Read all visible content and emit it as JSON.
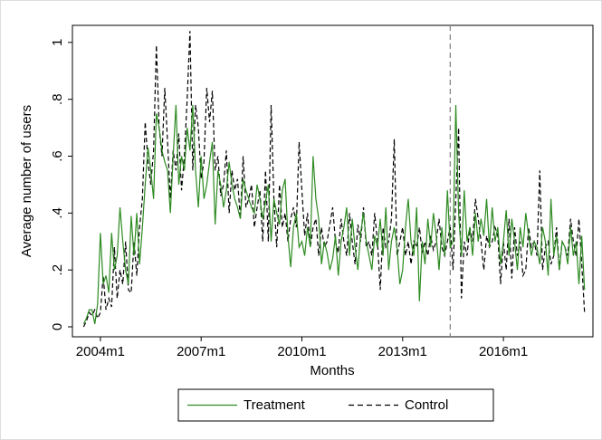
{
  "chart_data": {
    "type": "line",
    "y_label": "Average number of users",
    "x_label": "Months",
    "x": [
      522,
      523,
      524,
      525,
      526,
      527,
      528,
      529,
      530,
      531,
      532,
      533,
      534,
      535,
      536,
      537,
      538,
      539,
      540,
      541,
      542,
      543,
      544,
      545,
      546,
      547,
      548,
      549,
      550,
      551,
      552,
      553,
      554,
      555,
      556,
      557,
      558,
      559,
      560,
      561,
      562,
      563,
      564,
      565,
      566,
      567,
      568,
      569,
      570,
      571,
      572,
      573,
      574,
      575,
      576,
      577,
      578,
      579,
      580,
      581,
      582,
      583,
      584,
      585,
      586,
      587,
      588,
      589,
      590,
      591,
      592,
      593,
      594,
      595,
      596,
      597,
      598,
      599,
      600,
      601,
      602,
      603,
      604,
      605,
      606,
      607,
      608,
      609,
      610,
      611,
      612,
      613,
      614,
      615,
      616,
      617,
      618,
      619,
      620,
      621,
      622,
      623,
      624,
      625,
      626,
      627,
      628,
      629,
      630,
      631,
      632,
      633,
      634,
      635,
      636,
      637,
      638,
      639,
      640,
      641,
      642,
      643,
      644,
      645,
      646,
      647,
      648,
      649,
      650,
      651,
      652,
      653,
      654,
      655,
      656,
      657,
      658,
      659,
      660,
      661,
      662,
      663,
      664,
      665,
      666,
      667,
      668,
      669,
      670,
      671,
      672,
      673,
      674,
      675,
      676,
      677,
      678,
      679,
      680,
      681,
      682,
      683,
      684,
      685,
      686,
      687,
      688,
      689,
      690,
      691,
      692,
      693,
      694,
      695,
      696,
      697,
      698,
      699,
      700,
      701
    ],
    "series": [
      {
        "name": "Treatment",
        "color": "#2e8b22",
        "dash": false,
        "values": [
          0.01,
          0.03,
          0.06,
          0.06,
          0.01,
          0.08,
          0.33,
          0.15,
          0.18,
          0.12,
          0.33,
          0.2,
          0.25,
          0.42,
          0.3,
          0.2,
          0.15,
          0.39,
          0.25,
          0.4,
          0.22,
          0.35,
          0.5,
          0.63,
          0.55,
          0.45,
          0.75,
          0.7,
          0.62,
          0.58,
          0.55,
          0.4,
          0.6,
          0.78,
          0.5,
          0.6,
          0.55,
          0.7,
          0.62,
          0.78,
          0.55,
          0.42,
          0.6,
          0.45,
          0.5,
          0.58,
          0.65,
          0.36,
          0.55,
          0.5,
          0.42,
          0.48,
          0.58,
          0.5,
          0.45,
          0.42,
          0.38,
          0.52,
          0.48,
          0.45,
          0.42,
          0.4,
          0.5,
          0.45,
          0.38,
          0.44,
          0.5,
          0.3,
          0.45,
          0.4,
          0.36,
          0.48,
          0.52,
          0.32,
          0.21,
          0.35,
          0.4,
          0.28,
          0.3,
          0.25,
          0.35,
          0.28,
          0.6,
          0.45,
          0.38,
          0.22,
          0.3,
          0.26,
          0.2,
          0.24,
          0.32,
          0.18,
          0.3,
          0.35,
          0.42,
          0.25,
          0.38,
          0.28,
          0.2,
          0.33,
          0.4,
          0.3,
          0.25,
          0.2,
          0.32,
          0.28,
          0.38,
          0.25,
          0.42,
          0.2,
          0.3,
          0.35,
          0.28,
          0.15,
          0.2,
          0.35,
          0.45,
          0.3,
          0.25,
          0.42,
          0.09,
          0.3,
          0.22,
          0.38,
          0.28,
          0.4,
          0.32,
          0.2,
          0.35,
          0.25,
          0.48,
          0.28,
          0.3,
          0.78,
          0.4,
          0.25,
          0.48,
          0.3,
          0.35,
          0.25,
          0.4,
          0.3,
          0.38,
          0.32,
          0.45,
          0.28,
          0.42,
          0.3,
          0.35,
          0.22,
          0.3,
          0.41,
          0.25,
          0.38,
          0.3,
          0.2,
          0.35,
          0.28,
          0.4,
          0.32,
          0.25,
          0.3,
          0.28,
          0.22,
          0.35,
          0.3,
          0.18,
          0.45,
          0.25,
          0.32,
          0.2,
          0.3,
          0.28,
          0.22,
          0.35,
          0.25,
          0.3,
          0.15,
          0.32,
          0.13
        ]
      },
      {
        "name": "Control",
        "color": "#000000",
        "dash": true,
        "values": [
          0.0,
          0.02,
          0.05,
          0.04,
          0.06,
          0.03,
          0.05,
          0.18,
          0.06,
          0.1,
          0.07,
          0.28,
          0.1,
          0.2,
          0.15,
          0.3,
          0.13,
          0.12,
          0.3,
          0.18,
          0.35,
          0.45,
          0.72,
          0.58,
          0.5,
          0.62,
          0.99,
          0.7,
          0.6,
          0.84,
          0.65,
          0.45,
          0.62,
          0.55,
          0.68,
          0.48,
          0.6,
          0.8,
          1.04,
          0.55,
          0.78,
          0.7,
          0.52,
          0.58,
          0.84,
          0.72,
          0.83,
          0.55,
          0.6,
          0.46,
          0.5,
          0.62,
          0.4,
          0.55,
          0.48,
          0.52,
          0.38,
          0.6,
          0.42,
          0.45,
          0.5,
          0.35,
          0.42,
          0.48,
          0.3,
          0.55,
          0.3,
          0.78,
          0.45,
          0.28,
          0.5,
          0.35,
          0.4,
          0.3,
          0.38,
          0.42,
          0.35,
          0.65,
          0.48,
          0.32,
          0.4,
          0.28,
          0.35,
          0.38,
          0.25,
          0.35,
          0.28,
          0.3,
          0.36,
          0.42,
          0.3,
          0.26,
          0.38,
          0.3,
          0.25,
          0.4,
          0.3,
          0.22,
          0.36,
          0.3,
          0.42,
          0.28,
          0.3,
          0.25,
          0.4,
          0.3,
          0.13,
          0.35,
          0.28,
          0.3,
          0.38,
          0.66,
          0.25,
          0.3,
          0.35,
          0.25,
          0.3,
          0.22,
          0.3,
          0.28,
          0.35,
          0.26,
          0.3,
          0.25,
          0.32,
          0.27,
          0.3,
          0.38,
          0.28,
          0.25,
          0.3,
          0.35,
          0.2,
          0.45,
          0.7,
          0.1,
          0.3,
          0.25,
          0.35,
          0.3,
          0.45,
          0.38,
          0.3,
          0.2,
          0.32,
          0.28,
          0.3,
          0.35,
          0.32,
          0.15,
          0.3,
          0.2,
          0.38,
          0.17,
          0.35,
          0.25,
          0.3,
          0.18,
          0.2,
          0.35,
          0.28,
          0.3,
          0.25,
          0.55,
          0.2,
          0.28,
          0.3,
          0.22,
          0.25,
          0.35,
          0.2,
          0.3,
          0.28,
          0.25,
          0.38,
          0.3,
          0.25,
          0.38,
          0.22,
          0.05
        ]
      }
    ],
    "reference_line_x": 653,
    "xlim": [
      518,
      704
    ],
    "ylim": [
      -0.035,
      1.06
    ],
    "xticks": [
      {
        "value": 528,
        "label": "2004m1"
      },
      {
        "value": 564,
        "label": "2007m1"
      },
      {
        "value": 600,
        "label": "2010m1"
      },
      {
        "value": 636,
        "label": "2013m1"
      },
      {
        "value": 672,
        "label": "2016m1"
      }
    ],
    "yticks": [
      0,
      {
        "value": 0.2,
        "label": ".2"
      },
      {
        "value": 0.4,
        "label": ".4"
      },
      {
        "value": 0.6,
        "label": ".6"
      },
      {
        "value": 0.8,
        "label": ".8"
      },
      1
    ],
    "grid": false
  }
}
